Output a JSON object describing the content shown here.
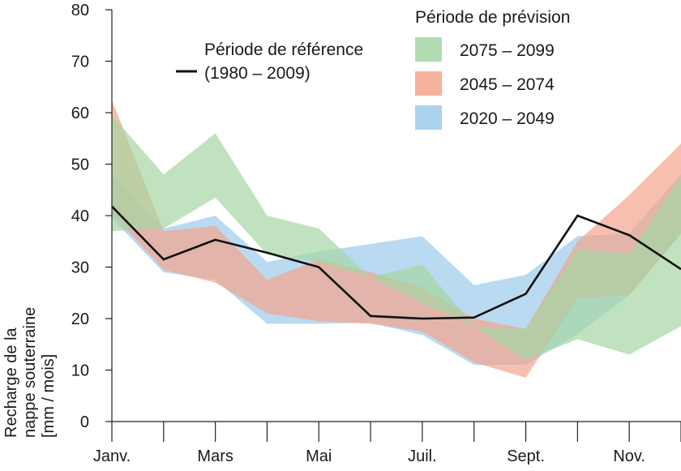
{
  "chart_data": {
    "type": "area",
    "x_tick_labels": [
      "Janv.",
      "Mars",
      "Mai",
      "Juil.",
      "Sept.",
      "Nov."
    ],
    "x_tick_months": [
      1,
      3,
      5,
      7,
      9,
      11
    ],
    "months": [
      1,
      2,
      3,
      4,
      5,
      6,
      7,
      8,
      9,
      10,
      11,
      12
    ],
    "ylabel_lines": [
      "Recharge de la",
      "nappe souterraine",
      "[mm / mois]"
    ],
    "ylim": [
      0,
      80
    ],
    "yticks": [
      "0",
      "10",
      "20",
      "30",
      "40",
      "50",
      "60",
      "70",
      "80"
    ],
    "reference": {
      "label_lines": [
        "Période de référence",
        "(1980 – 2009)"
      ],
      "color": "#111111",
      "values": [
        41.8,
        31.5,
        35.3,
        32.8,
        30.0,
        20.5,
        20.0,
        20.2,
        24.8,
        40.0,
        36.2,
        29.6
      ]
    },
    "legend_title": "Période de prévision",
    "series": [
      {
        "name": "2020 – 2049",
        "color": "#9ccbeb",
        "lower": [
          39.5,
          29.0,
          27.5,
          19.0,
          19.0,
          19.2,
          16.8,
          11.0,
          11.0,
          17.0,
          24.5,
          36.5
        ],
        "upper": [
          48.0,
          37.5,
          40.0,
          31.0,
          33.0,
          34.5,
          36.0,
          26.5,
          28.5,
          36.0,
          36.5,
          48.0
        ]
      },
      {
        "name": "2045 – 2074",
        "color": "#f4a48b",
        "lower": [
          40.5,
          29.5,
          27.0,
          21.0,
          19.5,
          19.0,
          17.5,
          11.5,
          8.5,
          24.0,
          24.5,
          36.5
        ],
        "upper": [
          62.5,
          37.0,
          38.0,
          27.5,
          31.5,
          29.0,
          26.0,
          20.0,
          18.0,
          35.0,
          44.0,
          54.0
        ]
      },
      {
        "name": "2075 – 2099",
        "color": "#a5d6a3",
        "lower": [
          37.0,
          37.5,
          43.5,
          32.5,
          31.0,
          28.0,
          23.0,
          18.5,
          12.0,
          16.0,
          13.0,
          18.5
        ],
        "upper": [
          59.5,
          48.0,
          56.0,
          40.0,
          37.5,
          28.0,
          30.5,
          18.5,
          18.0,
          33.5,
          32.5,
          47.5
        ]
      }
    ],
    "legend_order": [
      2,
      1,
      0
    ]
  }
}
